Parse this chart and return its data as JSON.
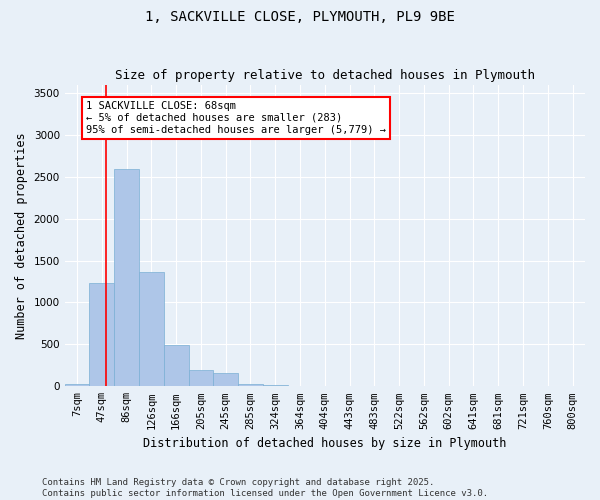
{
  "title_line1": "1, SACKVILLE CLOSE, PLYMOUTH, PL9 9BE",
  "title_line2": "Size of property relative to detached houses in Plymouth",
  "xlabel": "Distribution of detached houses by size in Plymouth",
  "ylabel": "Number of detached properties",
  "categories": [
    "7sqm",
    "47sqm",
    "86sqm",
    "126sqm",
    "166sqm",
    "205sqm",
    "245sqm",
    "285sqm",
    "324sqm",
    "364sqm",
    "404sqm",
    "443sqm",
    "483sqm",
    "522sqm",
    "562sqm",
    "602sqm",
    "641sqm",
    "681sqm",
    "721sqm",
    "760sqm",
    "800sqm"
  ],
  "bar_heights": [
    30,
    1230,
    2590,
    1360,
    490,
    200,
    155,
    30,
    10,
    5,
    3,
    2,
    2,
    0,
    0,
    0,
    0,
    0,
    0,
    0,
    0
  ],
  "bar_color": "#aec6e8",
  "bar_edgecolor": "#7aafd4",
  "bar_linewidth": 0.5,
  "ylim": [
    0,
    3600
  ],
  "yticks": [
    0,
    500,
    1000,
    1500,
    2000,
    2500,
    3000,
    3500
  ],
  "red_line_x": 1.18,
  "annotation_text_line1": "1 SACKVILLE CLOSE: 68sqm",
  "annotation_text_line2": "← 5% of detached houses are smaller (283)",
  "annotation_text_line3": "95% of semi-detached houses are larger (5,779) →",
  "annotation_fontsize": 7.5,
  "annotation_box_color": "white",
  "annotation_box_edgecolor": "red",
  "footer_line1": "Contains HM Land Registry data © Crown copyright and database right 2025.",
  "footer_line2": "Contains public sector information licensed under the Open Government Licence v3.0.",
  "background_color": "#e8f0f8",
  "plot_background": "#e8f0f8",
  "grid_color": "white",
  "title_fontsize": 10,
  "subtitle_fontsize": 9,
  "axis_label_fontsize": 8.5,
  "tick_fontsize": 7.5,
  "footer_fontsize": 6.5
}
